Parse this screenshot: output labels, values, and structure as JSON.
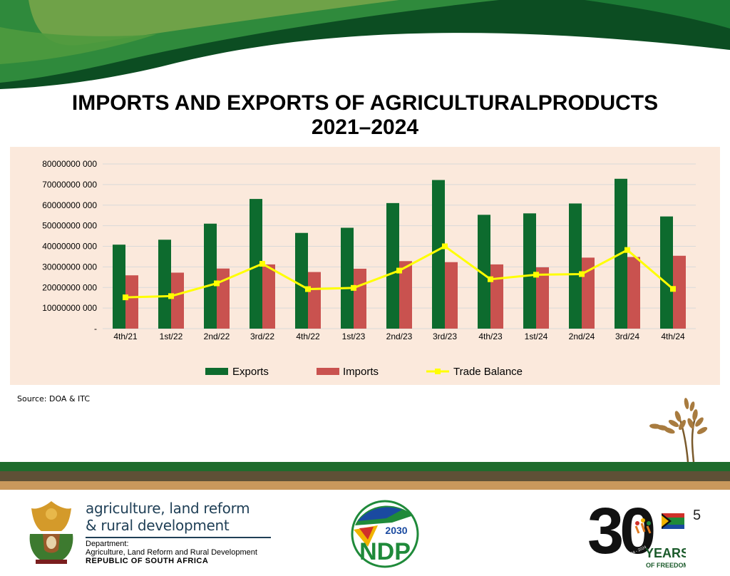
{
  "slide": {
    "title_line1": "IMPORTS AND EXPORTS OF AGRICULTURALPRODUCTS",
    "title_line2": "2021–2024",
    "source": "Source: DOA & ITC",
    "page_number": "5"
  },
  "footer": {
    "dept_name_line1": "agriculture, land reform",
    "dept_name_line2": "& rural development",
    "dept_label": "Department:",
    "dept_full": "Agriculture, Land Reform and Rural Development",
    "country": "REPUBLIC OF SOUTH AFRICA",
    "ndp_year": "2030",
    "ndp_text": "NDP",
    "thirty": "30",
    "years_text": "YEARS",
    "freedom_text": "OF FREEDOM",
    "anniversary_text": "South Africa 1994 - 2024"
  },
  "colors": {
    "exports": "#0d6b2e",
    "imports": "#c9524f",
    "trade_balance": "#ffff00",
    "chart_background": "#fbe9dc",
    "header_green": "#1e6b2c",
    "footer_band_green": "#1e6b2c",
    "footer_band_brown": "#5e5036",
    "footer_band_tan": "#c9985c"
  },
  "chart_data": {
    "type": "bar",
    "categories": [
      "4th/21",
      "1st/22",
      "2nd/22",
      "3rd/22",
      "4th/22",
      "1st/23",
      "2nd/23",
      "3rd/23",
      "4th/23",
      "1st/24",
      "2nd/24",
      "3rd/24",
      "4th/24"
    ],
    "series": [
      {
        "name": "Exports",
        "type": "bar",
        "values": [
          40800000000,
          43200000000,
          51000000000,
          63000000000,
          46500000000,
          49000000000,
          61000000000,
          72200000000,
          55300000000,
          56000000000,
          60800000000,
          72800000000,
          54500000000
        ]
      },
      {
        "name": "Imports",
        "type": "bar",
        "values": [
          25900000000,
          27200000000,
          29200000000,
          31200000000,
          27500000000,
          29100000000,
          32800000000,
          32300000000,
          31200000000,
          29800000000,
          34500000000,
          34800000000,
          35400000000
        ]
      },
      {
        "name": "Trade Balance",
        "type": "line",
        "values": [
          15200000000,
          15800000000,
          22000000000,
          31500000000,
          19200000000,
          19800000000,
          28200000000,
          40000000000,
          24000000000,
          26200000000,
          26500000000,
          38200000000,
          19300000000
        ]
      }
    ],
    "ylim": [
      0,
      80000000000
    ],
    "yticks": [
      0,
      10000000000,
      20000000000,
      30000000000,
      40000000000,
      50000000000,
      60000000000,
      70000000000,
      80000000000
    ],
    "ytick_labels": [
      "-",
      "10000000 000",
      "20000000 000",
      "30000000 000",
      "40000000 000",
      "50000000 000",
      "60000000 000",
      "70000000 000",
      "80000000 000"
    ],
    "grid": true,
    "legend_position": "bottom"
  }
}
